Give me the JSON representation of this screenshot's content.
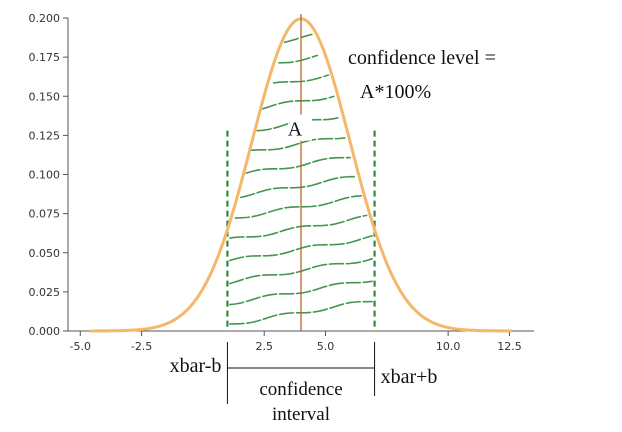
{
  "chart_data": {
    "type": "line",
    "title": "",
    "xlabel": "",
    "ylabel": "",
    "xlim": [
      -5.5,
      13.5
    ],
    "ylim": [
      0,
      0.2
    ],
    "x_ticks": [
      "-5.0",
      "-2.5",
      "2.5",
      "5.0",
      "10.0",
      "12.5"
    ],
    "x_tick_values": [
      -5,
      -2.5,
      2.5,
      5,
      10,
      12.5
    ],
    "y_ticks": [
      "0.000",
      "0.025",
      "0.050",
      "0.075",
      "0.100",
      "0.125",
      "0.150",
      "0.175",
      "0.200"
    ],
    "y_tick_values": [
      0,
      0.025,
      0.05,
      0.075,
      0.1,
      0.125,
      0.15,
      0.175,
      0.2
    ],
    "grid": false,
    "legend": "none",
    "series": [
      {
        "distribution": "normal",
        "mean": 4,
        "sd": 2,
        "peak": 0.1995,
        "color": "#f5b76a"
      }
    ],
    "mean_line": {
      "x": 4,
      "color": "#b8652a"
    },
    "interval": {
      "lower": 1,
      "upper": 7,
      "color": "#2f8a3c"
    },
    "shading": {
      "from": 1,
      "to": 7,
      "color": "#2f8a3c",
      "style": "hand-drawn hatching"
    },
    "annotations": {
      "area_label": "A",
      "confidence_level_line1": "confidence level =",
      "confidence_level_line2": "A*100%",
      "lower_label": "xbar-b",
      "upper_label": "xbar+b",
      "interval_line1": "confidence",
      "interval_line2": "interval"
    }
  }
}
